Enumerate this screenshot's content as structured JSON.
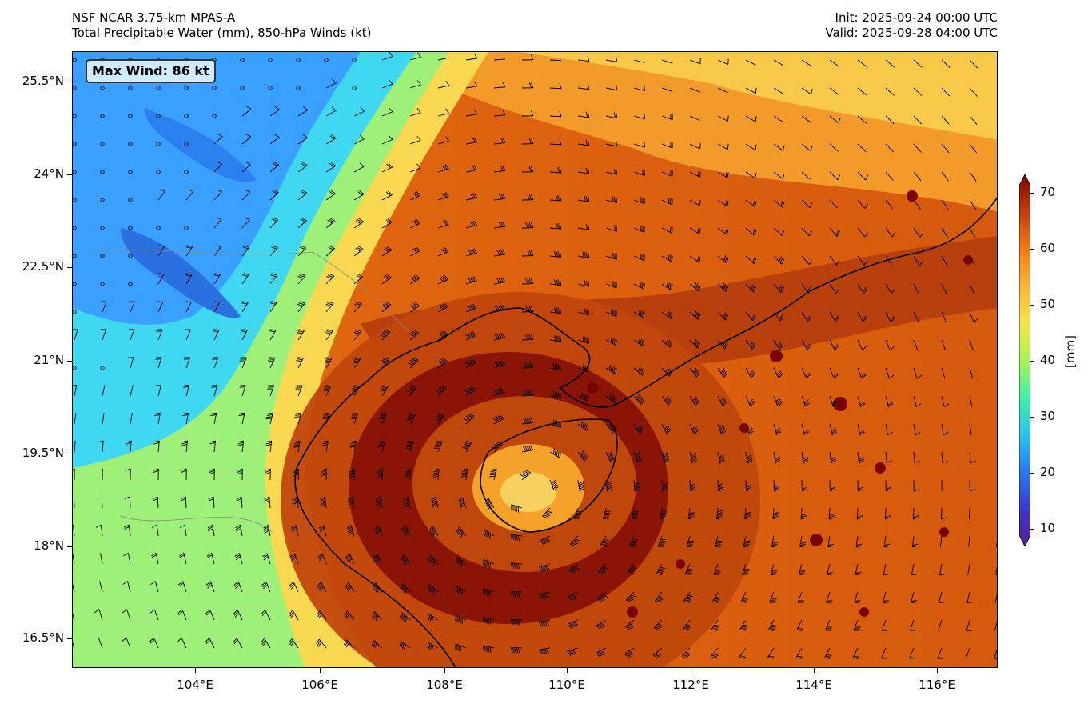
{
  "header": {
    "model_title": "NSF NCAR 3.75-km MPAS-A",
    "fields_title": "Total Precipitable Water (mm), 850-hPa Winds (kt)",
    "init": "Init: 2025-09-24 00:00 UTC",
    "valid": "Valid: 2025-09-28 04:00 UTC"
  },
  "annotation": {
    "max_wind": "Max Wind: 86 kt"
  },
  "axes": {
    "lat_ticks": [
      "25.5°N",
      "24°N",
      "22.5°N",
      "21°N",
      "19.5°N",
      "18°N",
      "16.5°N"
    ],
    "lon_ticks": [
      "104°E",
      "106°E",
      "108°E",
      "110°E",
      "112°E",
      "114°E",
      "116°E"
    ]
  },
  "colorbar": {
    "label": "[mm]",
    "ticks": [
      "70",
      "60",
      "50",
      "40",
      "30",
      "20",
      "10"
    ],
    "colors": [
      "#7a0403",
      "#c23c0a",
      "#f07a18",
      "#fbb33a",
      "#f3e54a",
      "#a6f35a",
      "#40f0a8",
      "#29c3f0",
      "#2a78f0",
      "#3a3ad0",
      "#5a1a90"
    ]
  },
  "map": {
    "colors": {
      "very_high": "#8a1506",
      "high": "#c0470c",
      "mid_high": "#e56a10",
      "mid": "#f5a22a",
      "yellow": "#f8e050",
      "green": "#90f070",
      "cyan": "#40d8f0",
      "blue": "#3aa0ff",
      "coast": "#000000"
    },
    "storm_center": "Hainan / Gulf of Tonkin typhoon"
  }
}
